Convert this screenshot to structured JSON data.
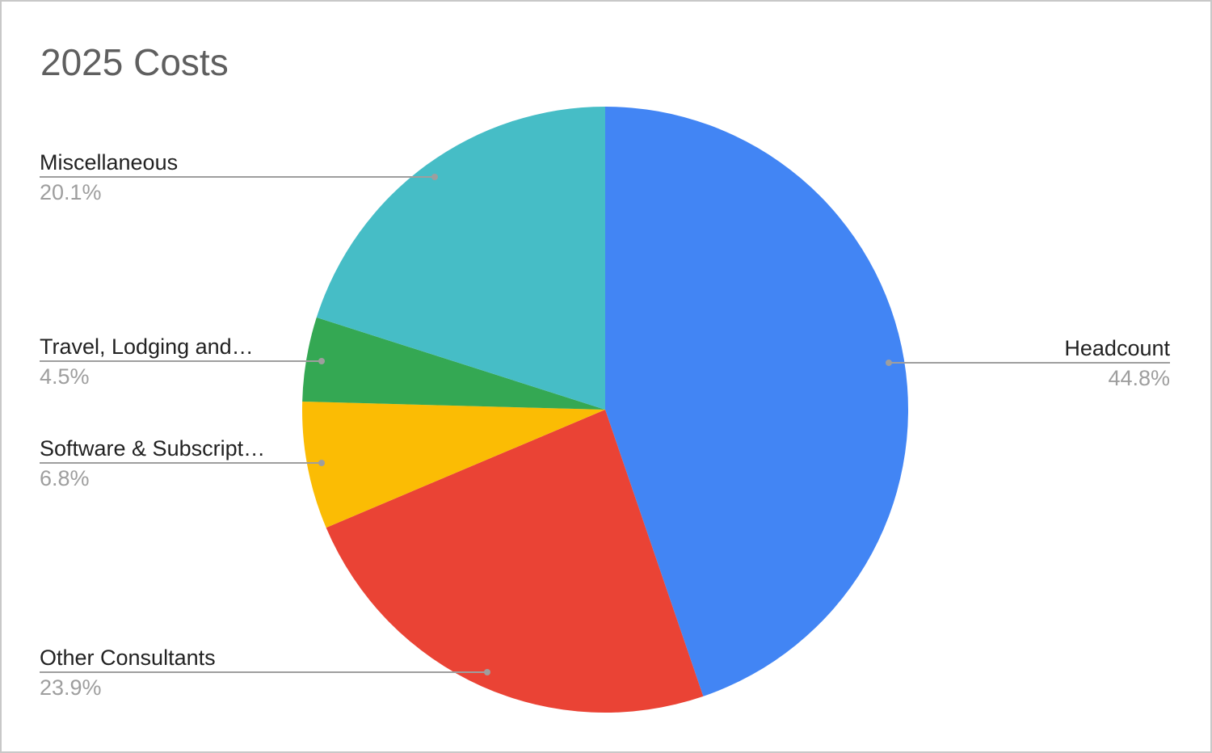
{
  "chart_data": {
    "type": "pie",
    "title": "2025 Costs",
    "start_angle": "top",
    "direction": "clockwise",
    "slices": [
      {
        "label": "Headcount",
        "value": 44.8,
        "percent_label": "44.8%",
        "color": "#4285F4"
      },
      {
        "label": "Other Consultants",
        "value": 23.9,
        "percent_label": "23.9%",
        "color": "#EA4335"
      },
      {
        "label": "Software & Subscript…",
        "value": 6.8,
        "percent_label": "6.8%",
        "color": "#FBBC04"
      },
      {
        "label": "Travel, Lodging and…",
        "value": 4.5,
        "percent_label": "4.5%",
        "color": "#34A853"
      },
      {
        "label": "Miscellaneous",
        "value": 20.1,
        "percent_label": "20.1%",
        "color": "#46BDC6"
      }
    ],
    "legend": "labeled leader lines"
  }
}
